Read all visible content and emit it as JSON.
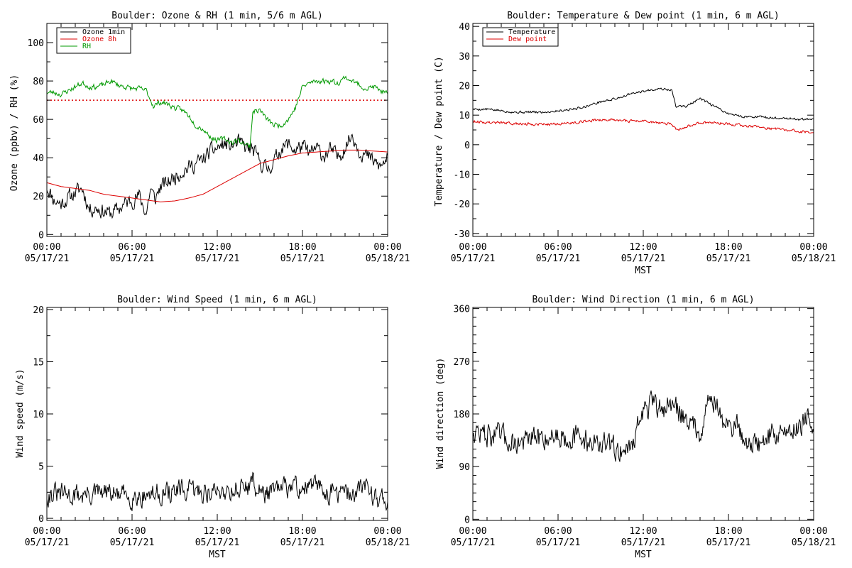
{
  "colors": {
    "black": "#000000",
    "red": "#dd0000",
    "green": "#009900",
    "background": "#ffffff"
  },
  "chart_data": [
    {
      "id": "ozone_rh",
      "type": "line",
      "title": "Boulder: Ozone & RH (1 min, 5/6 m AGL)",
      "xlabel": "",
      "ylabel": "Ozone (ppbv) / RH (%)",
      "xlim": [
        0,
        24
      ],
      "ylim": [
        -1,
        110
      ],
      "x_ticks": [
        0,
        6,
        12,
        18,
        24
      ],
      "x_tick_labels": [
        [
          "00:00",
          "05/17/21"
        ],
        [
          "06:00",
          "05/17/21"
        ],
        [
          "12:00",
          "05/17/21"
        ],
        [
          "18:00",
          "05/17/21"
        ],
        [
          "00:00",
          "05/18/21"
        ]
      ],
      "y_ticks": [
        0,
        20,
        40,
        60,
        80,
        100
      ],
      "y_tick_labels": [
        "0",
        "20",
        "40",
        "60",
        "80",
        "100"
      ],
      "grid": false,
      "legend": {
        "position": "top-left",
        "entries": [
          {
            "label": "Ozone 1min",
            "color": "#000000"
          },
          {
            "label": "Ozone 8h",
            "color": "#dd0000"
          },
          {
            "label": "RH",
            "color": "#009900"
          }
        ]
      },
      "threshold_line": {
        "y": 70,
        "color": "#dd0000",
        "style": "dotted"
      },
      "series": [
        {
          "name": "Ozone 1min",
          "color": "#000000",
          "noise": 3.5,
          "seed": 11,
          "x": [
            0,
            0.5,
            1,
            1.5,
            2,
            2.5,
            3,
            3.5,
            4,
            4.5,
            5,
            5.5,
            6,
            6.5,
            7,
            7.3,
            7.6,
            8,
            8.5,
            9,
            9.5,
            10,
            10.5,
            11,
            11.5,
            12,
            12.5,
            13,
            13.5,
            14,
            14.5,
            15,
            15.5,
            16,
            16.5,
            17,
            17.5,
            18,
            18.5,
            19,
            19.5,
            20,
            20.5,
            21,
            21.5,
            22,
            22.5,
            23,
            23.5,
            24
          ],
          "values": [
            25,
            18,
            16,
            19,
            22,
            24,
            13,
            14,
            12,
            11,
            13,
            16,
            18,
            20,
            11,
            24,
            18,
            25,
            27,
            30,
            33,
            35,
            37,
            39,
            43,
            45,
            47,
            46,
            48,
            45,
            44,
            38,
            34,
            38,
            45,
            47,
            44,
            46,
            42,
            45,
            41,
            44,
            40,
            46,
            52,
            44,
            41,
            38,
            35,
            40
          ]
        },
        {
          "name": "Ozone 8h",
          "color": "#dd0000",
          "noise": 0,
          "seed": 0,
          "x": [
            0,
            1,
            2,
            3,
            4,
            5,
            6,
            7,
            8,
            9,
            10,
            11,
            12,
            13,
            14,
            15,
            16,
            17,
            18,
            19,
            20,
            21,
            22,
            23,
            24
          ],
          "values": [
            27,
            25,
            24,
            23,
            21,
            20,
            19,
            18,
            17,
            17.5,
            19,
            21,
            25,
            29,
            33,
            37,
            39,
            41,
            42.5,
            43,
            43.5,
            44,
            44,
            43.5,
            43
          ]
        },
        {
          "name": "RH",
          "color": "#009900",
          "noise": 1.2,
          "seed": 23,
          "x": [
            0,
            0.5,
            1,
            1.5,
            2,
            2.5,
            3,
            3.5,
            4,
            4.5,
            5,
            5.5,
            6,
            6.5,
            7,
            7.5,
            8,
            8.5,
            9,
            9.5,
            10,
            10.5,
            11,
            11.5,
            12,
            12.5,
            13,
            13.5,
            14,
            14.3,
            14.5,
            15,
            15.5,
            16,
            16.5,
            17,
            17.5,
            18,
            18.5,
            19,
            19.5,
            20,
            20.5,
            21,
            21.5,
            22,
            22.5,
            23,
            23.5,
            24
          ],
          "values": [
            74,
            74,
            73,
            75,
            77,
            79,
            77,
            77,
            78,
            80,
            78,
            77,
            76,
            76,
            75,
            67,
            69,
            68,
            66,
            65,
            62,
            57,
            55,
            51,
            49,
            50,
            48,
            49,
            47,
            46,
            64,
            65,
            60,
            57,
            57,
            60,
            66,
            77,
            79,
            80,
            80,
            80,
            79,
            82,
            80,
            78,
            76,
            77,
            75,
            73
          ]
        }
      ]
    },
    {
      "id": "temp_dew",
      "type": "line",
      "title": "Boulder: Temperature & Dew point (1 min, 6 m AGL)",
      "xlabel": "MST",
      "ylabel": "Temperature / Dew point (C)",
      "xlim": [
        0,
        24
      ],
      "ylim": [
        -31,
        41
      ],
      "x_ticks": [
        0,
        6,
        12,
        18,
        24
      ],
      "x_tick_labels": [
        [
          "00:00",
          "05/17/21"
        ],
        [
          "06:00",
          "05/17/21"
        ],
        [
          "12:00",
          "05/17/21"
        ],
        [
          "18:00",
          "05/17/21"
        ],
        [
          "00:00",
          "05/18/21"
        ]
      ],
      "y_ticks": [
        -30,
        -20,
        -10,
        0,
        10,
        20,
        30,
        40
      ],
      "y_tick_labels": [
        "-30",
        "-20",
        "-10",
        "0",
        "10",
        "20",
        "30",
        "40"
      ],
      "grid": false,
      "legend": {
        "position": "top-left",
        "entries": [
          {
            "label": "Temperature",
            "color": "#000000"
          },
          {
            "label": "Dew point",
            "color": "#dd0000"
          }
        ]
      },
      "series": [
        {
          "name": "Temperature",
          "color": "#000000",
          "noise": 0.35,
          "seed": 5,
          "x": [
            0,
            1,
            2,
            3,
            4,
            5,
            6,
            7,
            8,
            9,
            10,
            11,
            12,
            13,
            14,
            14.3,
            15,
            16,
            17,
            18,
            19,
            20,
            21,
            22,
            23,
            23.5,
            24
          ],
          "values": [
            12,
            12,
            11.5,
            11,
            11,
            11,
            11.5,
            12,
            13,
            14.5,
            15.5,
            17,
            18,
            19,
            18.5,
            13,
            13,
            15.5,
            13,
            10.5,
            9.5,
            9.5,
            9,
            9,
            8.5,
            8.5,
            8.5
          ]
        },
        {
          "name": "Dew point",
          "color": "#dd0000",
          "noise": 0.4,
          "seed": 9,
          "x": [
            0,
            1,
            2,
            3,
            4,
            5,
            6,
            7,
            8,
            9,
            10,
            11,
            12,
            13,
            14,
            14.3,
            15,
            16,
            17,
            18,
            19,
            20,
            21,
            22,
            23,
            24
          ],
          "values": [
            8,
            7.5,
            7.5,
            7,
            7,
            7,
            7,
            7.5,
            8,
            8.5,
            8.5,
            8,
            8,
            7.5,
            7,
            5,
            6,
            7.5,
            7.5,
            7,
            6.5,
            6,
            5.5,
            5,
            4.5,
            4
          ]
        }
      ]
    },
    {
      "id": "wind_speed",
      "type": "line",
      "title": "Boulder: Wind Speed (1 min, 6 m AGL)",
      "xlabel": "MST",
      "ylabel": "Wind speed (m/s)",
      "xlim": [
        0,
        24
      ],
      "ylim": [
        -0.2,
        20.2
      ],
      "x_ticks": [
        0,
        6,
        12,
        18,
        24
      ],
      "x_tick_labels": [
        [
          "00:00",
          "05/17/21"
        ],
        [
          "06:00",
          "05/17/21"
        ],
        [
          "12:00",
          "05/17/21"
        ],
        [
          "18:00",
          "05/17/21"
        ],
        [
          "00:00",
          "05/18/21"
        ]
      ],
      "y_ticks": [
        0,
        5,
        10,
        15,
        20
      ],
      "y_tick_labels": [
        "0",
        "5",
        "10",
        "15",
        "20"
      ],
      "grid": false,
      "series": [
        {
          "name": "",
          "color": "#000000",
          "noise": 0.9,
          "seed": 31,
          "floor": 0.3,
          "x": [
            0,
            2,
            4,
            6,
            8,
            10,
            12,
            13,
            14,
            14.5,
            15,
            16,
            17,
            18,
            19,
            20,
            21,
            22,
            22.5,
            23,
            24
          ],
          "values": [
            2.3,
            2.2,
            2.4,
            2.1,
            2.4,
            2.6,
            2.5,
            2.8,
            3.0,
            3.5,
            2.5,
            2.5,
            3.0,
            3.0,
            3.0,
            2.5,
            2.3,
            2.5,
            3.5,
            2.0,
            2.0
          ]
        }
      ]
    },
    {
      "id": "wind_dir",
      "type": "line",
      "title": "Boulder: Wind Direction (1 min, 6 m AGL)",
      "xlabel": "MST",
      "ylabel": "Wind direction (deg)",
      "xlim": [
        0,
        24
      ],
      "ylim": [
        -2,
        362
      ],
      "x_ticks": [
        0,
        6,
        12,
        18,
        24
      ],
      "x_tick_labels": [
        [
          "00:00",
          "05/17/21"
        ],
        [
          "06:00",
          "05/17/21"
        ],
        [
          "12:00",
          "05/17/21"
        ],
        [
          "18:00",
          "05/17/21"
        ],
        [
          "00:00",
          "05/18/21"
        ]
      ],
      "y_ticks": [
        0,
        90,
        180,
        270,
        360
      ],
      "y_tick_labels": [
        "0",
        "90",
        "180",
        "270",
        "360"
      ],
      "grid": false,
      "series": [
        {
          "name": "",
          "color": "#000000",
          "noise": 18,
          "seed": 47,
          "x": [
            0,
            1,
            2,
            3,
            4,
            5,
            6,
            7,
            8,
            9,
            10,
            11,
            11.5,
            12,
            12.5,
            13,
            14,
            15,
            15.5,
            16,
            16.5,
            17,
            17.5,
            18,
            18.5,
            19,
            20,
            21,
            22,
            23,
            23.5,
            24
          ],
          "values": [
            150,
            145,
            140,
            130,
            135,
            140,
            145,
            140,
            135,
            130,
            120,
            120,
            150,
            185,
            195,
            190,
            195,
            175,
            160,
            150,
            200,
            205,
            170,
            155,
            165,
            140,
            125,
            145,
            150,
            160,
            180,
            150
          ]
        }
      ]
    }
  ]
}
